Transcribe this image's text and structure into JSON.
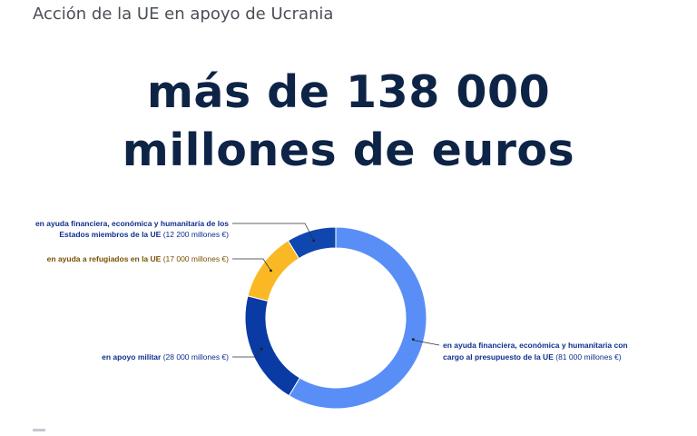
{
  "header": {
    "subtitle": "Acción de la UE en apoyo de Ucrania",
    "headline_line1": "más de 138 000",
    "headline_line2": "millones de euros"
  },
  "chart_data": {
    "type": "pie",
    "donut": true,
    "unit": "millones €",
    "slices": [
      {
        "bold": "en ayuda financiera, económica y humanitaria de los Estados miembros de la UE",
        "amount_text": "(12 200 millones €)",
        "value": 12200,
        "color": "#0f47af"
      },
      {
        "bold": "en ayuda a refugiados en la UE",
        "amount_text": "(17 000 millones €)",
        "value": 17000,
        "color": "#fbb825"
      },
      {
        "bold": "en apoyo militar",
        "amount_text": "(28 000 millones €)",
        "value": 28000,
        "color": "#0a3aa3"
      },
      {
        "bold": "en ayuda financiera, económica y humanitaria con cargo al presupuesto de la UE",
        "amount_text": "(81 000 millones €)",
        "value": 81000,
        "color": "#5a8ef7"
      }
    ]
  },
  "labels": {
    "l1_line1": "en ayuda financiera, económica y humanitaria de los",
    "l1_line2_bold": "Estados miembros de la UE",
    "l2_text_color": "#7a5200",
    "dark_text_color": "#0e2f8f"
  }
}
